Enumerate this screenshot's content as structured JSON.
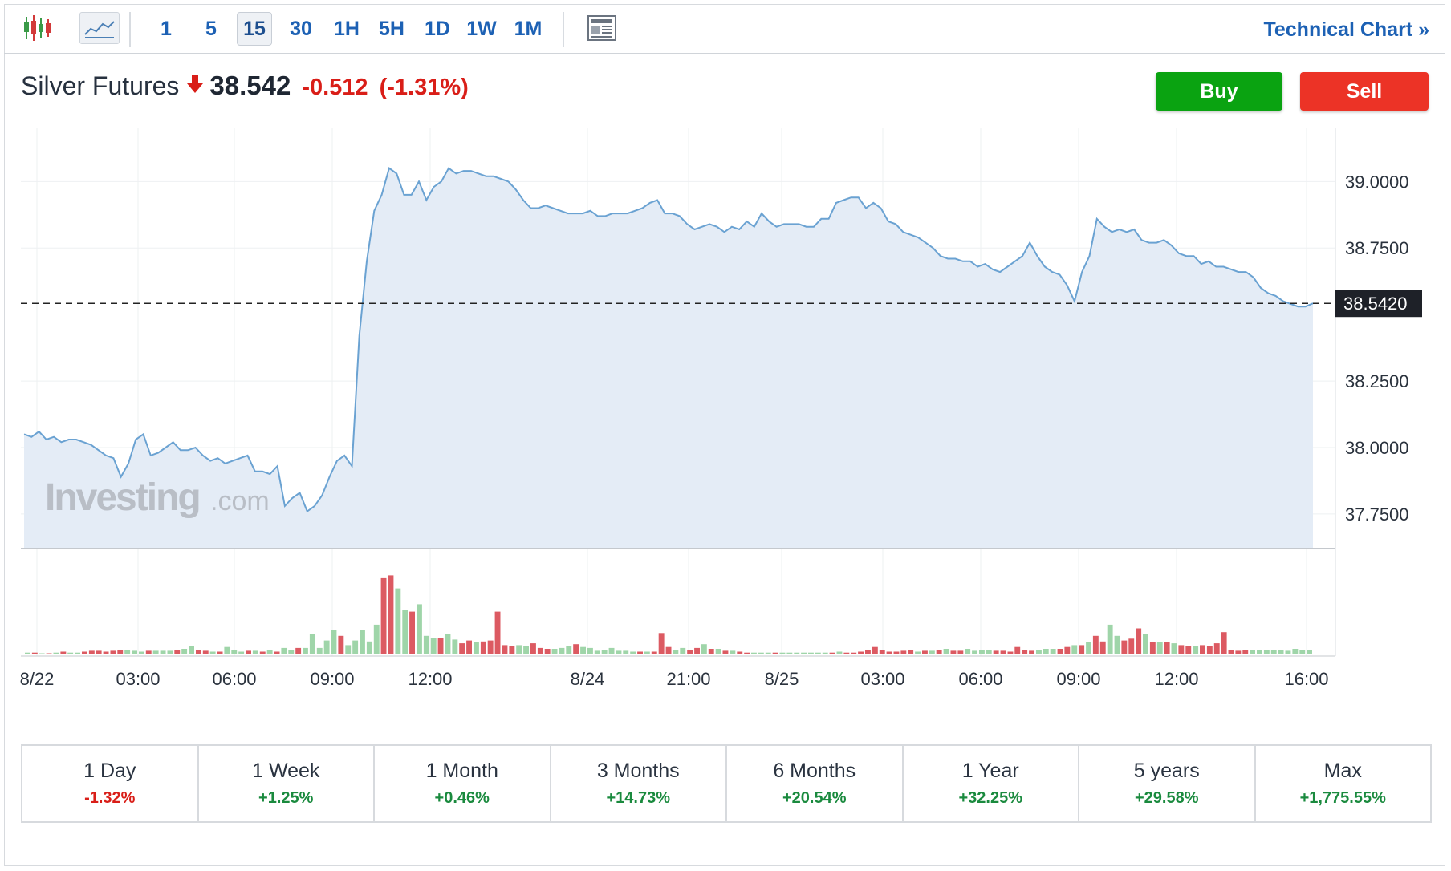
{
  "toolbar": {
    "intervals": [
      "1",
      "5",
      "15",
      "30",
      "1H",
      "5H",
      "1D",
      "1W",
      "1M"
    ],
    "active_interval": "15",
    "technical_chart_label": "Technical Chart »"
  },
  "instrument": {
    "name": "Silver Futures",
    "price": "38.542",
    "change": "-0.512",
    "change_pct": "(-1.31%)",
    "direction": "down",
    "down_color": "#d91e18"
  },
  "actions": {
    "buy_label": "Buy",
    "sell_label": "Sell",
    "buy_color": "#0aa311",
    "sell_color": "#ec3326"
  },
  "watermark": {
    "brand": "Investing",
    "suffix": ".com"
  },
  "chart_data": {
    "type": "area",
    "y_ticks": [
      "39.0000",
      "38.7500",
      "38.2500",
      "38.0000",
      "37.7500"
    ],
    "y_range": [
      37.62,
      39.2
    ],
    "current_price_label": "38.5420",
    "current_price": 38.542,
    "x_tick_labels": [
      "8/22",
      "03:00",
      "06:00",
      "09:00",
      "12:00",
      "8/24",
      "21:00",
      "8/25",
      "03:00",
      "06:00",
      "09:00",
      "12:00",
      "16:00"
    ],
    "grid": true,
    "series": [
      {
        "values": [
          38.05,
          38.04,
          38.06,
          38.03,
          38.04,
          38.02,
          38.03,
          38.03,
          38.02,
          38.01,
          37.99,
          37.97,
          37.96,
          37.89,
          37.94,
          38.03,
          38.05,
          37.97,
          37.98,
          38.0,
          38.02,
          37.99,
          37.99,
          38.0,
          37.97,
          37.95,
          37.96,
          37.94,
          37.95,
          37.96,
          37.97,
          37.91,
          37.91,
          37.9,
          37.93,
          37.78,
          37.81,
          37.83,
          37.76,
          37.78,
          37.82,
          37.89,
          37.95,
          37.97,
          37.93,
          38.42,
          38.7,
          38.89,
          38.95,
          39.05,
          39.03,
          38.95,
          38.95,
          39.0,
          38.93,
          38.98,
          39.0,
          39.05,
          39.03,
          39.04,
          39.04,
          39.03,
          39.02,
          39.02,
          39.01,
          39.0,
          38.97,
          38.93,
          38.9,
          38.9,
          38.91,
          38.9,
          38.89,
          38.88,
          38.88,
          38.88,
          38.89,
          38.87,
          38.87,
          38.88,
          38.88,
          38.88,
          38.89,
          38.9,
          38.92,
          38.93,
          38.88,
          38.88,
          38.87,
          38.84,
          38.82,
          38.83,
          38.84,
          38.83,
          38.81,
          38.83,
          38.82,
          38.85,
          38.83,
          38.88,
          38.85,
          38.83,
          38.84,
          38.84,
          38.84,
          38.83,
          38.83,
          38.86,
          38.86,
          38.92,
          38.93,
          38.94,
          38.94,
          38.9,
          38.92,
          38.9,
          38.85,
          38.84,
          38.81,
          38.8,
          38.79,
          38.77,
          38.75,
          38.72,
          38.71,
          38.71,
          38.7,
          38.7,
          38.68,
          38.69,
          38.67,
          38.66,
          38.68,
          38.7,
          38.72,
          38.77,
          38.72,
          38.68,
          38.66,
          38.65,
          38.61,
          38.55,
          38.66,
          38.72,
          38.86,
          38.83,
          38.81,
          38.82,
          38.81,
          38.82,
          38.78,
          38.77,
          38.77,
          38.78,
          38.76,
          38.73,
          38.72,
          38.72,
          38.69,
          38.7,
          38.68,
          38.68,
          38.67,
          38.66,
          38.66,
          38.64,
          38.6,
          38.58,
          38.57,
          38.55,
          38.54,
          38.53,
          38.53,
          38.542
        ]
      }
    ],
    "volume": {
      "values": [
        0.02,
        0.02,
        0.01,
        0.01,
        0.02,
        0.03,
        0.02,
        0.02,
        0.03,
        0.04,
        0.04,
        0.03,
        0.04,
        0.05,
        0.05,
        0.04,
        0.03,
        0.04,
        0.04,
        0.04,
        0.04,
        0.05,
        0.06,
        0.09,
        0.05,
        0.04,
        0.03,
        0.03,
        0.08,
        0.05,
        0.03,
        0.04,
        0.04,
        0.03,
        0.05,
        0.03,
        0.07,
        0.05,
        0.07,
        0.07,
        0.22,
        0.07,
        0.15,
        0.26,
        0.2,
        0.1,
        0.15,
        0.26,
        0.14,
        0.32,
        0.82,
        0.85,
        0.71,
        0.48,
        0.46,
        0.54,
        0.2,
        0.18,
        0.18,
        0.22,
        0.16,
        0.12,
        0.15,
        0.13,
        0.14,
        0.15,
        0.46,
        0.1,
        0.09,
        0.1,
        0.09,
        0.12,
        0.07,
        0.06,
        0.06,
        0.07,
        0.09,
        0.11,
        0.08,
        0.07,
        0.04,
        0.05,
        0.07,
        0.04,
        0.04,
        0.03,
        0.03,
        0.03,
        0.03,
        0.23,
        0.08,
        0.05,
        0.07,
        0.05,
        0.07,
        0.11,
        0.06,
        0.06,
        0.04,
        0.04,
        0.03,
        0.02,
        0.02,
        0.02,
        0.02,
        0.02,
        0.02,
        0.02,
        0.02,
        0.02,
        0.02,
        0.02,
        0.02,
        0.02,
        0.03,
        0.02,
        0.02,
        0.03,
        0.05,
        0.08,
        0.05,
        0.03,
        0.03,
        0.04,
        0.05,
        0.03,
        0.04,
        0.04,
        0.05,
        0.06,
        0.04,
        0.04,
        0.06,
        0.04,
        0.05,
        0.05,
        0.04,
        0.04,
        0.03,
        0.08,
        0.05,
        0.04,
        0.05,
        0.06,
        0.06,
        0.06,
        0.08,
        0.1,
        0.1,
        0.13,
        0.2,
        0.14,
        0.32,
        0.2,
        0.15,
        0.17,
        0.28,
        0.22,
        0.13,
        0.13,
        0.13,
        0.12,
        0.1,
        0.09,
        0.09,
        0.1,
        0.09,
        0.12,
        0.24,
        0.05,
        0.04,
        0.05,
        0.05,
        0.05,
        0.05,
        0.05,
        0.05,
        0.04,
        0.06,
        0.05,
        0.05
      ],
      "up_color": "#9fd5a9",
      "down_color": "#dc5a62"
    },
    "line_color": "#6aa2d2",
    "fill_color": "#e4ecf6"
  },
  "periods": [
    {
      "label": "1 Day",
      "value": "-1.32%",
      "dir": "neg"
    },
    {
      "label": "1 Week",
      "value": "+1.25%",
      "dir": "pos"
    },
    {
      "label": "1 Month",
      "value": "+0.46%",
      "dir": "pos"
    },
    {
      "label": "3 Months",
      "value": "+14.73%",
      "dir": "pos"
    },
    {
      "label": "6 Months",
      "value": "+20.54%",
      "dir": "pos"
    },
    {
      "label": "1 Year",
      "value": "+32.25%",
      "dir": "pos"
    },
    {
      "label": "5 years",
      "value": "+29.58%",
      "dir": "pos"
    },
    {
      "label": "Max",
      "value": "+1,775.55%",
      "dir": "pos"
    }
  ]
}
